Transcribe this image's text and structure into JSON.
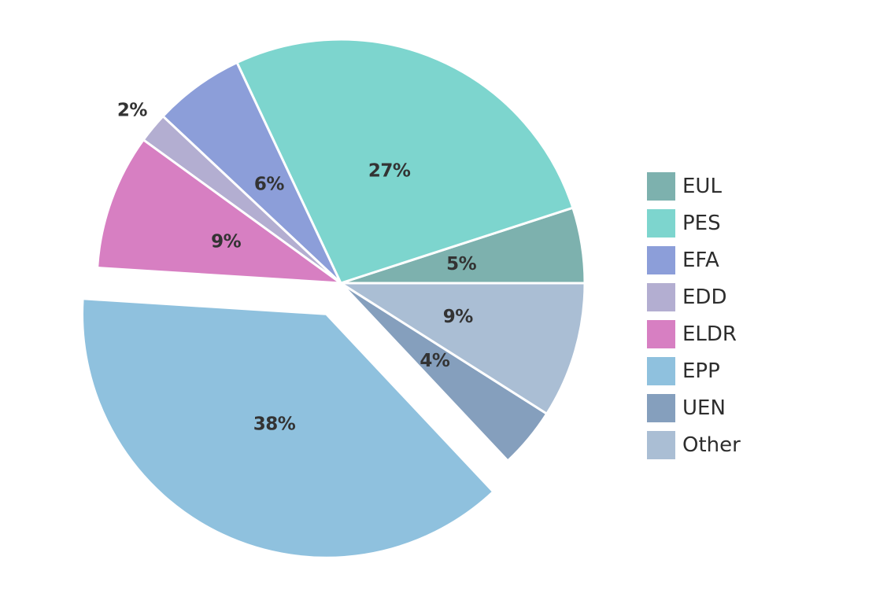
{
  "chart_data": {
    "type": "pie",
    "title": "",
    "background": "#ffffff",
    "slice_border_color": "#ffffff",
    "slice_border_width": 3,
    "label_color": "#333333",
    "start_angle_deg": 0,
    "direction": "counterclockwise",
    "default_label_distance": 0.5,
    "legend_position": "right",
    "center": {
      "x": 433,
      "y": 360
    },
    "radius": 310,
    "series": [
      {
        "label": "EUL",
        "value": 5,
        "pct_label": "5%",
        "color": "#7db1ae",
        "explode": 0
      },
      {
        "label": "PES",
        "value": 27,
        "pct_label": "27%",
        "color": "#7dd5ce",
        "explode": 0
      },
      {
        "label": "EFA",
        "value": 6,
        "pct_label": "6%",
        "color": "#8c9ed9",
        "explode": 0
      },
      {
        "label": "EDD",
        "value": 2,
        "pct_label": "2%",
        "color": "#b3aed1",
        "explode": 0,
        "label_distance": 1.11
      },
      {
        "label": "ELDR",
        "value": 9,
        "pct_label": "9%",
        "color": "#d77fc2",
        "explode": 0
      },
      {
        "label": "EPP",
        "value": 38,
        "pct_label": "38%",
        "color": "#8fc1de",
        "explode": 0.14
      },
      {
        "label": "UEN",
        "value": 4,
        "pct_label": "4%",
        "color": "#859fbd",
        "explode": 0
      },
      {
        "label": "Other",
        "value": 9,
        "pct_label": "9%",
        "color": "#aabed4",
        "explode": 0
      }
    ],
    "legend_labels": [
      "EUL",
      "PES",
      "EFA",
      "EDD",
      "ELDR",
      "EPP",
      "UEN",
      "Other"
    ]
  }
}
